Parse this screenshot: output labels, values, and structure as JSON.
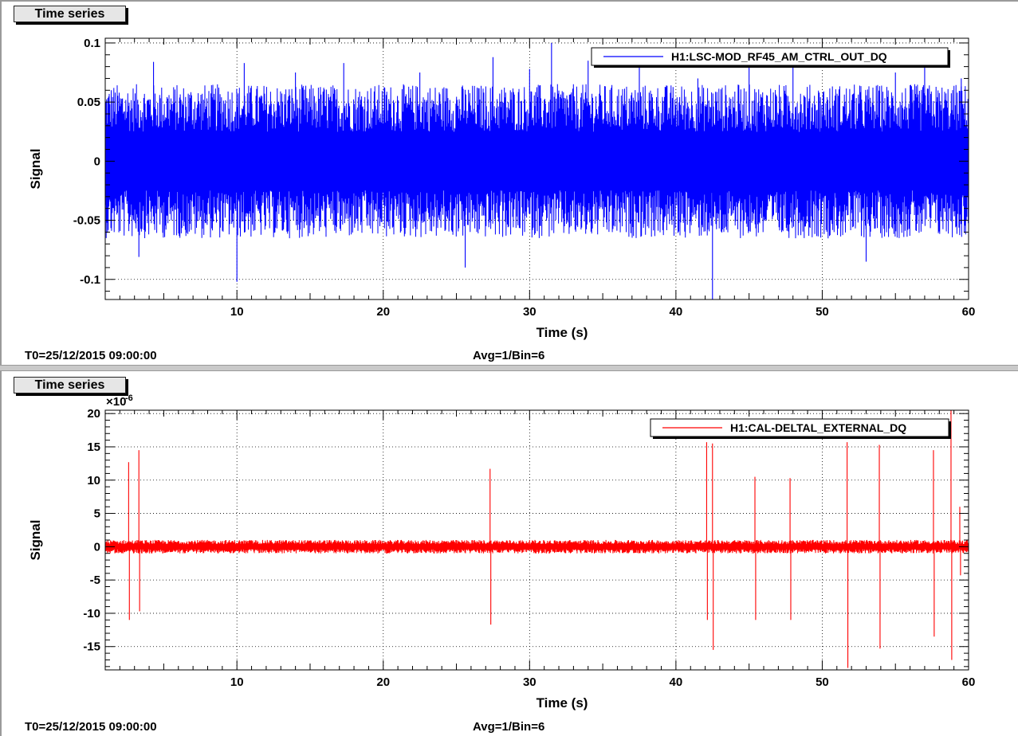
{
  "panels": [
    {
      "tab_label": "Time series",
      "footer_left": "T0=25/12/2015 09:00:00",
      "footer_center": "Avg=1/Bin=6"
    },
    {
      "tab_label": "Time series",
      "footer_left": "T0=25/12/2015 09:00:00",
      "footer_center": "Avg=1/Bin=6"
    }
  ],
  "chart_data": [
    {
      "type": "line",
      "xlabel": "Time (s)",
      "ylabel": "Signal",
      "xlim": [
        1,
        60
      ],
      "ylim": [
        -0.117,
        0.104
      ],
      "x_ticks": [
        10,
        20,
        30,
        40,
        50,
        60
      ],
      "x_tick_labels": [
        "10",
        "20",
        "30",
        "40",
        "50",
        "60"
      ],
      "y_ticks": [
        -0.1,
        -0.05,
        0,
        0.05,
        0.1
      ],
      "y_tick_labels": [
        "-0.1",
        "-0.05",
        "0",
        "0.05",
        "0.1"
      ],
      "y_exponent_label": "",
      "grid": true,
      "legend_position": "top-right",
      "series": [
        {
          "name": "H1:LSC-MOD_RF45_AM_CTRL_OUT_DQ",
          "color": "#0000ff",
          "style": "noise",
          "envelope": 0.045,
          "spikes": [
            [
              3.3,
              -0.081
            ],
            [
              4.3,
              0.084
            ],
            [
              10,
              -0.102
            ],
            [
              10.5,
              0.083
            ],
            [
              14,
              0.075
            ],
            [
              17.3,
              0.083
            ],
            [
              22.5,
              0.075
            ],
            [
              25.6,
              -0.09
            ],
            [
              27.5,
              0.088
            ],
            [
              30,
              0.078
            ],
            [
              31.5,
              0.1
            ],
            [
              34,
              0.085
            ],
            [
              37.5,
              0.082
            ],
            [
              41.5,
              0.07
            ],
            [
              42.5,
              -0.117
            ],
            [
              45,
              0.087
            ],
            [
              48,
              0.083
            ],
            [
              53,
              -0.085
            ],
            [
              55,
              0.075
            ],
            [
              57,
              0.085
            ],
            [
              59.5,
              0.07
            ]
          ]
        }
      ]
    },
    {
      "type": "line",
      "xlabel": "Time (s)",
      "ylabel": "Signal",
      "xlim": [
        1,
        60
      ],
      "ylim": [
        -18.5,
        20.5
      ],
      "x_ticks": [
        10,
        20,
        30,
        40,
        50,
        60
      ],
      "x_tick_labels": [
        "10",
        "20",
        "30",
        "40",
        "50",
        "60"
      ],
      "y_ticks": [
        -15,
        -10,
        -5,
        0,
        5,
        10,
        15,
        20
      ],
      "y_tick_labels": [
        "-15",
        "-10",
        "-5",
        "0",
        "5",
        "10",
        "15",
        "20"
      ],
      "y_exponent_label": "×10",
      "y_exponent_power": "-6",
      "grid": true,
      "legend_position": "top-right",
      "series": [
        {
          "name": "H1:CAL-DELTAL_EXTERNAL_DQ",
          "color": "#ff0000",
          "style": "noise",
          "envelope": 0.7,
          "spikes": [
            [
              2.6,
              12.7
            ],
            [
              2.65,
              -11
            ],
            [
              3.3,
              14.5
            ],
            [
              3.35,
              -9.7
            ],
            [
              27.3,
              11.7
            ],
            [
              27.35,
              -11.7
            ],
            [
              42.1,
              15.7
            ],
            [
              42.15,
              -11
            ],
            [
              42.5,
              15.5
            ],
            [
              42.55,
              -15.5
            ],
            [
              45.4,
              10.5
            ],
            [
              45.45,
              -11
            ],
            [
              47.8,
              10.3
            ],
            [
              47.85,
              -11
            ],
            [
              51.7,
              15.7
            ],
            [
              51.75,
              -18.2
            ],
            [
              53.9,
              15.3
            ],
            [
              53.95,
              -15.3
            ],
            [
              57.6,
              14.5
            ],
            [
              57.65,
              -13.5
            ],
            [
              58.8,
              20.5
            ],
            [
              58.85,
              -17
            ],
            [
              59.4,
              6
            ],
            [
              59.45,
              -4.3
            ]
          ]
        }
      ]
    }
  ]
}
